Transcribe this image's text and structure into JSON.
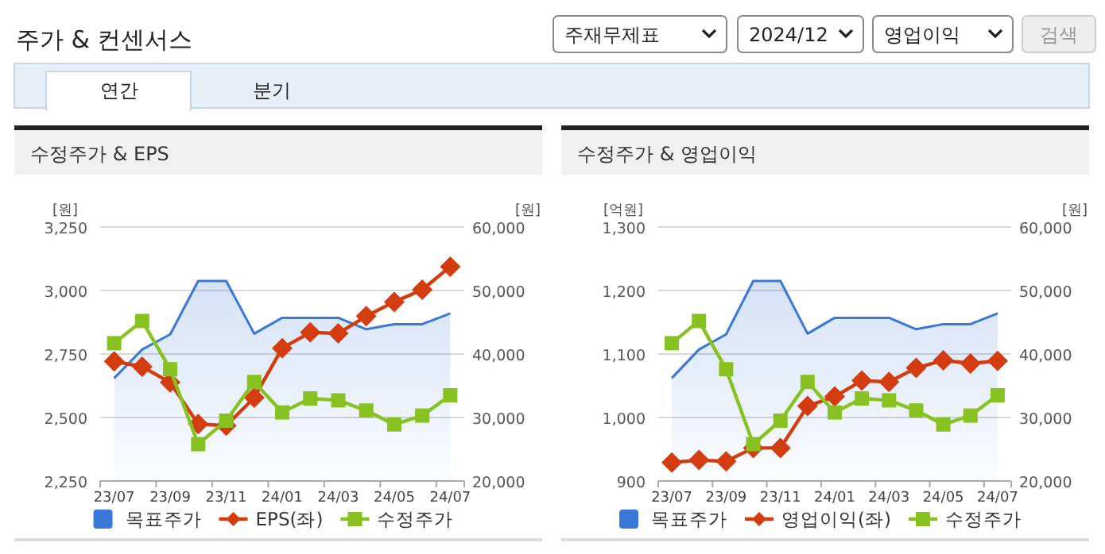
{
  "chart_data": [
    {
      "type": "other",
      "title": "주가 & 컨센서스",
      "annotations": [
        "주재무제표",
        "2024/12",
        "영업이익",
        "검색",
        "연간",
        "분기"
      ]
    },
    {
      "type": "line",
      "title": "수정주가 & EPS",
      "ylabel": "[원]",
      "y2label": "[원]",
      "categories": [
        "23/07",
        null,
        "23/09",
        null,
        "23/11",
        null,
        "24/01",
        null,
        "24/03",
        null,
        "24/05",
        null,
        "24/07"
      ],
      "ylim": [
        2250,
        3250
      ],
      "yticks": [
        {
          "value": 2250,
          "label": "2,250"
        },
        {
          "value": 2500,
          "label": "2,500"
        },
        {
          "value": 2750,
          "label": "2,750"
        },
        {
          "value": 3000,
          "label": "3,000"
        },
        {
          "value": 3250,
          "label": "3,250"
        }
      ],
      "y2lim": [
        20000,
        60000
      ],
      "y2ticks": [
        {
          "value": 20000,
          "label": "20,000"
        },
        {
          "value": 30000,
          "label": "30,000"
        },
        {
          "value": 40000,
          "label": "40,000"
        },
        {
          "value": 50000,
          "label": "50,000"
        },
        {
          "value": 60000,
          "label": "60,000"
        }
      ],
      "grid": "y",
      "legend": "bottom",
      "series": [
        {
          "name": "목표주가",
          "type": "area",
          "axis": "y2",
          "color": "#3a78d8",
          "marker": "none",
          "values": [
            36200,
            40700,
            43100,
            51500,
            51500,
            43200,
            45700,
            45700,
            45700,
            43900,
            44700,
            44700,
            46400
          ]
        },
        {
          "name": "EPS(좌)",
          "type": "line",
          "color": "#d23c0e",
          "marker": "diamond",
          "values": [
            2721,
            2700,
            2638,
            2474,
            2468,
            2578,
            2773,
            2835,
            2831,
            2899,
            2955,
            3003,
            3094
          ]
        },
        {
          "name": "수정주가",
          "type": "line",
          "axis": "y2",
          "color": "#88c220",
          "marker": "square",
          "values": [
            41700,
            45200,
            37600,
            25800,
            29500,
            35600,
            30800,
            33000,
            32700,
            31100,
            28900,
            30300,
            33500
          ]
        }
      ]
    },
    {
      "type": "line",
      "title": "수정주가 & 영업이익",
      "ylabel": "[억원]",
      "y2label": "[원]",
      "categories": [
        "23/07",
        null,
        "23/09",
        null,
        "23/11",
        null,
        "24/01",
        null,
        "24/03",
        null,
        "24/05",
        null,
        "24/07"
      ],
      "ylim": [
        900,
        1300
      ],
      "yticks": [
        {
          "value": 900,
          "label": "900"
        },
        {
          "value": 1000,
          "label": "1,000"
        },
        {
          "value": 1100,
          "label": "1,100"
        },
        {
          "value": 1200,
          "label": "1,200"
        },
        {
          "value": 1300,
          "label": "1,300"
        }
      ],
      "y2lim": [
        20000,
        60000
      ],
      "y2ticks": [
        {
          "value": 20000,
          "label": "20,000"
        },
        {
          "value": 30000,
          "label": "30,000"
        },
        {
          "value": 40000,
          "label": "40,000"
        },
        {
          "value": 50000,
          "label": "50,000"
        },
        {
          "value": 60000,
          "label": "60,000"
        }
      ],
      "grid": "y",
      "legend": "bottom",
      "series": [
        {
          "name": "목표주가",
          "type": "area",
          "axis": "y2",
          "color": "#3a78d8",
          "marker": "none",
          "values": [
            36200,
            40700,
            43100,
            51500,
            51500,
            43200,
            45700,
            45700,
            45700,
            43900,
            44700,
            44700,
            46400
          ]
        },
        {
          "name": "영업이익(좌)",
          "type": "line",
          "color": "#d23c0e",
          "marker": "diamond",
          "values": [
            929,
            933,
            931,
            952,
            952,
            1018,
            1033,
            1058,
            1056,
            1078,
            1090,
            1085,
            1089
          ]
        },
        {
          "name": "수정주가",
          "type": "line",
          "axis": "y2",
          "color": "#88c220",
          "marker": "square",
          "values": [
            41700,
            45200,
            37600,
            25800,
            29500,
            35600,
            30800,
            33000,
            32700,
            31100,
            28900,
            30300,
            33500
          ]
        }
      ]
    }
  ]
}
